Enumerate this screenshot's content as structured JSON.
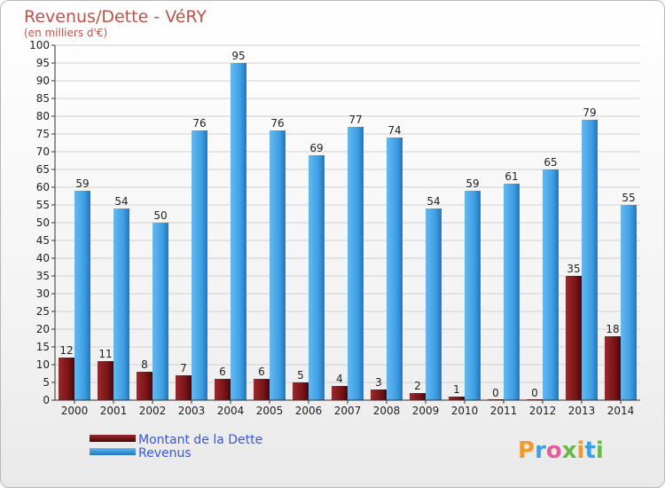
{
  "chart_data": {
    "type": "bar",
    "title": "Revenus/Dette - VéRY",
    "subtitle": "(en milliers d'€)",
    "ylim": [
      0,
      100
    ],
    "yticks": [
      0,
      5,
      10,
      15,
      20,
      25,
      30,
      35,
      40,
      45,
      50,
      55,
      60,
      65,
      70,
      75,
      80,
      85,
      90,
      95,
      100
    ],
    "categories": [
      "2000",
      "2001",
      "2002",
      "2003",
      "2004",
      "2005",
      "2006",
      "2007",
      "2008",
      "2009",
      "2010",
      "2011",
      "2012",
      "2013",
      "2014"
    ],
    "series": [
      {
        "name": "Montant de la Dette",
        "color": "#7a1416",
        "values": [
          12,
          11,
          8,
          7,
          6,
          6,
          5,
          4,
          3,
          2,
          1,
          0,
          0,
          35,
          18
        ]
      },
      {
        "name": "Revenus",
        "color": "#3f9fe3",
        "values": [
          59,
          54,
          50,
          76,
          95,
          76,
          69,
          77,
          74,
          54,
          59,
          61,
          65,
          79,
          55
        ]
      }
    ],
    "grid": true,
    "legend": "bottom-left"
  },
  "logo": {
    "text": "Proxiti"
  }
}
